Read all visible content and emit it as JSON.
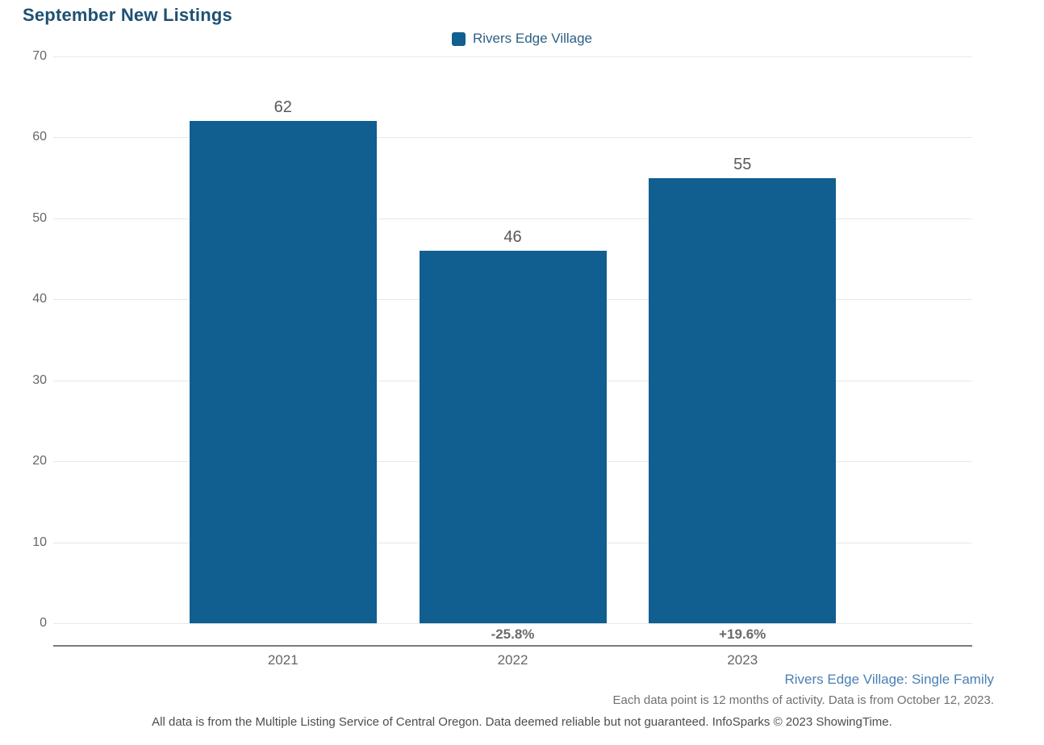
{
  "chart_data": {
    "type": "bar",
    "title": "September New Listings",
    "categories": [
      "2021",
      "2022",
      "2023"
    ],
    "series": [
      {
        "name": "Rivers Edge Village",
        "color": "#115e90",
        "values": [
          62,
          46,
          55
        ],
        "value_labels": [
          "62",
          "46",
          "55"
        ],
        "pct_change_labels": [
          "",
          "-25.8%",
          "+19.6%"
        ]
      }
    ],
    "xlabel": "",
    "ylabel": "",
    "ylim": [
      0,
      70
    ],
    "yticks": [
      0,
      10,
      20,
      30,
      40,
      50,
      60,
      70
    ],
    "grid": true,
    "legend_position": "top-center"
  },
  "legend": {
    "items": [
      {
        "label": "Rivers Edge Village",
        "color": "#115e90"
      }
    ]
  },
  "footer": {
    "series_note": "Rivers Edge Village: Single Family",
    "data_note": "Each data point is 12 months of activity. Data is from October 12, 2023.",
    "disclaimer": "All data is from the Multiple Listing Service of Central Oregon. Data deemed reliable but not guaranteed. InfoSparks © 2023 ShowingTime."
  },
  "colors": {
    "bar": "#115e90",
    "title": "#1d5173",
    "legend_text": "#2d5f84",
    "footer_link_blue": "#4a80b4",
    "gridline": "#e8e8e8",
    "axis_line": "#7b7b7b",
    "tick_text": "#666666",
    "value_label_text": "#595959",
    "pct_label_text": "#6a6a6a"
  }
}
